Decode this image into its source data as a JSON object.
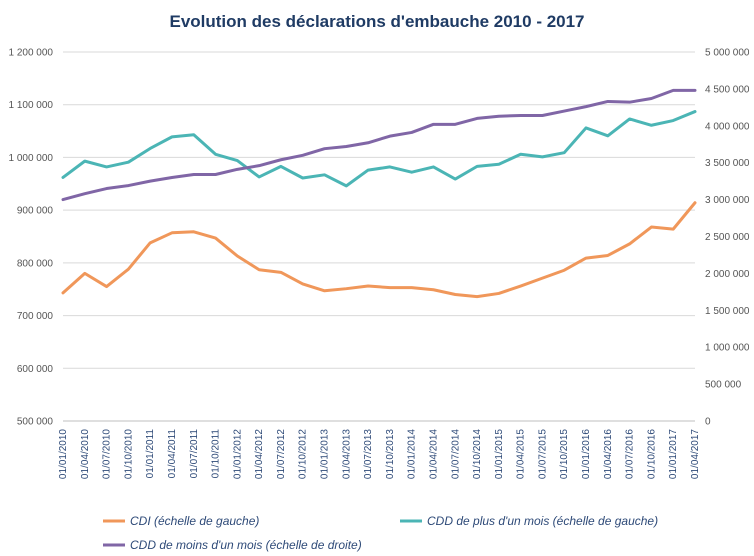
{
  "chart_data": {
    "type": "line",
    "title": "Evolution des déclarations d'embauche 2010 - 2017",
    "x": [
      "01/01/2010",
      "01/04/2010",
      "01/07/2010",
      "01/10/2010",
      "01/01/2011",
      "01/04/2011",
      "01/07/2011",
      "01/10/2011",
      "01/01/2012",
      "01/04/2012",
      "01/07/2012",
      "01/10/2012",
      "01/01/2013",
      "01/04/2013",
      "01/07/2013",
      "01/10/2013",
      "01/01/2014",
      "01/04/2014",
      "01/07/2014",
      "01/10/2014",
      "01/01/2015",
      "01/04/2015",
      "01/07/2015",
      "01/10/2015",
      "01/01/2016",
      "01/04/2016",
      "01/07/2016",
      "01/10/2016",
      "01/01/2017",
      "01/04/2017"
    ],
    "y_left": {
      "min": 500000,
      "max": 1200000,
      "ticks": [
        500000,
        600000,
        700000,
        800000,
        900000,
        1000000,
        1100000,
        1200000
      ],
      "tick_labels": [
        "500 000",
        "600 000",
        "700 000",
        "800 000",
        "900 000",
        "1 000 000",
        "1 100 000",
        "1 200 000"
      ]
    },
    "y_right": {
      "min": 0,
      "max": 5000000,
      "ticks": [
        0,
        500000,
        1000000,
        1500000,
        2000000,
        2500000,
        3000000,
        3500000,
        4000000,
        4500000,
        5000000
      ],
      "tick_labels": [
        "0",
        "500 000",
        "1 000 000",
        "1 500 000",
        "2 000 000",
        "2 500 000",
        "3 000 000",
        "3 500 000",
        "4 000 000",
        "4 500 000",
        "5 000 000"
      ]
    },
    "grid": true,
    "legend_position": "bottom",
    "series": [
      {
        "name": "CDI (échelle de gauche)",
        "axis": "left",
        "color": "#f0975a",
        "values": [
          743000,
          780000,
          755000,
          788000,
          838000,
          857000,
          859000,
          847000,
          813000,
          787000,
          782000,
          760000,
          747000,
          751000,
          756000,
          753000,
          753000,
          749000,
          740000,
          736000,
          742000,
          756000,
          771000,
          786000,
          809000,
          814000,
          836000,
          868000,
          864000,
          914000
        ]
      },
      {
        "name": "CDD de plus d'un mois (échelle de gauche)",
        "axis": "left",
        "color": "#4bb5b5",
        "values": [
          962000,
          993000,
          982000,
          991000,
          1017000,
          1039000,
          1043000,
          1006000,
          994000,
          963000,
          983000,
          961000,
          967000,
          946000,
          976000,
          982000,
          972000,
          982000,
          959000,
          983000,
          987000,
          1006000,
          1001000,
          1009000,
          1056000,
          1041000,
          1073000,
          1061000,
          1070000,
          1087000
        ]
      },
      {
        "name": "CDD de moins d'un mois (échelle de droite)",
        "axis": "right",
        "color": "#8066a6",
        "values": [
          3000000,
          3080000,
          3150000,
          3190000,
          3250000,
          3300000,
          3340000,
          3340000,
          3410000,
          3460000,
          3540000,
          3600000,
          3690000,
          3720000,
          3770000,
          3860000,
          3910000,
          4020000,
          4020000,
          4100000,
          4130000,
          4140000,
          4140000,
          4200000,
          4260000,
          4330000,
          4320000,
          4370000,
          4480000,
          4480000
        ]
      }
    ]
  }
}
